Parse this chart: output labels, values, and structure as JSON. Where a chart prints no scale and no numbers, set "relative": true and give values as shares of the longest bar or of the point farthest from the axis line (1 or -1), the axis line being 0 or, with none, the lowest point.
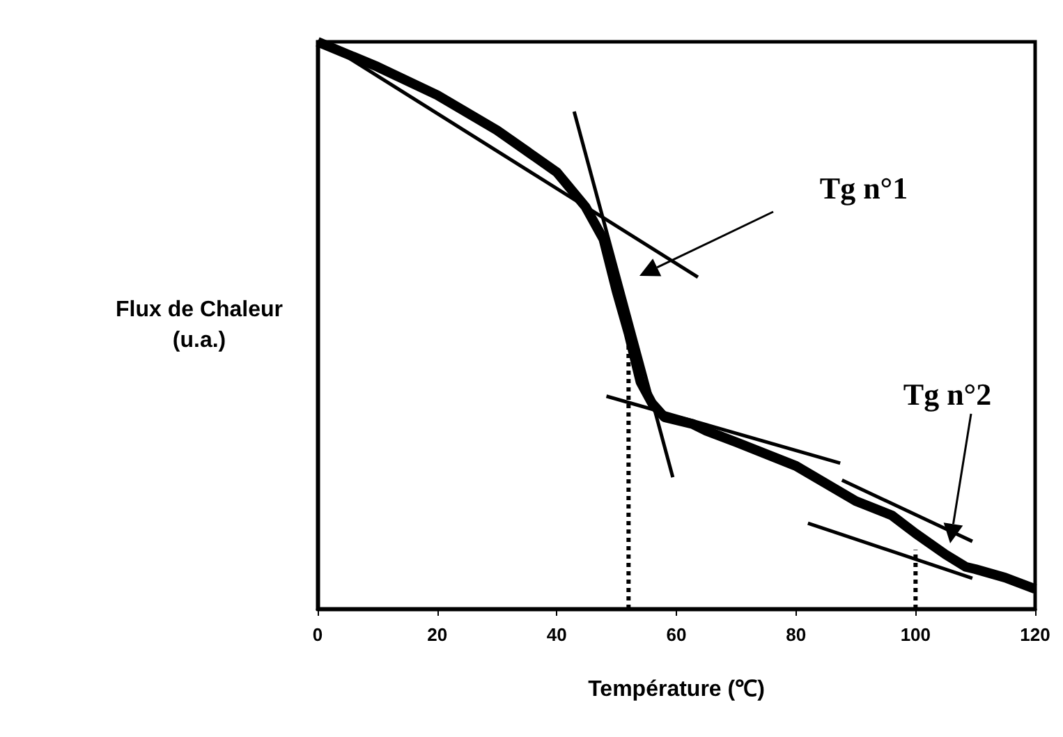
{
  "chart_data": {
    "type": "line",
    "relative": true,
    "xlabel": "Température (℃)",
    "ylabel": "Flux de Chaleur\n(u.a.)",
    "xlim": [
      0,
      120
    ],
    "xticks": [
      0,
      20,
      40,
      60,
      80,
      100,
      120
    ],
    "tick_labels": "x",
    "grid": false,
    "marker": "none",
    "line_style": "solid",
    "series": [
      {
        "color": "#000000",
        "x": [
          0,
          10,
          20,
          30,
          40,
          44.8,
          47.8,
          50,
          52,
          54,
          55.9,
          58,
          62.7,
          65,
          70,
          80,
          90,
          96,
          100,
          105,
          108.4,
          110,
          115,
          120
        ],
        "values": [
          1.0,
          0.956,
          0.906,
          0.844,
          0.77,
          0.709,
          0.652,
          0.56,
          0.486,
          0.4,
          0.363,
          0.338,
          0.326,
          0.314,
          0.294,
          0.252,
          0.19,
          0.165,
          0.133,
          0.096,
          0.074,
          0.07,
          0.055,
          0.035
        ]
      },
      {
        "color": "#000000",
        "x": [
          1.2,
          63.6
        ],
        "values": [
          0.998,
          0.585
        ]
      },
      {
        "color": "#000000",
        "x": [
          42.9,
          59.4
        ],
        "values": [
          0.877,
          0.232
        ]
      },
      {
        "color": "#000000",
        "x": [
          48.3,
          87.4
        ],
        "values": [
          0.375,
          0.257
        ]
      },
      {
        "color": "#000000",
        "x": [
          87.7,
          109.5
        ],
        "values": [
          0.227,
          0.119
        ]
      },
      {
        "color": "#000000",
        "x": [
          82.0,
          109.5
        ],
        "values": [
          0.151,
          0.054
        ]
      },
      {
        "color": "#000000",
        "line_style": "dotted",
        "x": [
          52,
          52
        ],
        "values": [
          0,
          0.486
        ]
      },
      {
        "color": "#000000",
        "line_style": "dotted",
        "x": [
          100,
          100
        ],
        "values": [
          0,
          0.104
        ]
      }
    ],
    "annotations": [
      "Tg n°1",
      "Tg n°2"
    ]
  }
}
